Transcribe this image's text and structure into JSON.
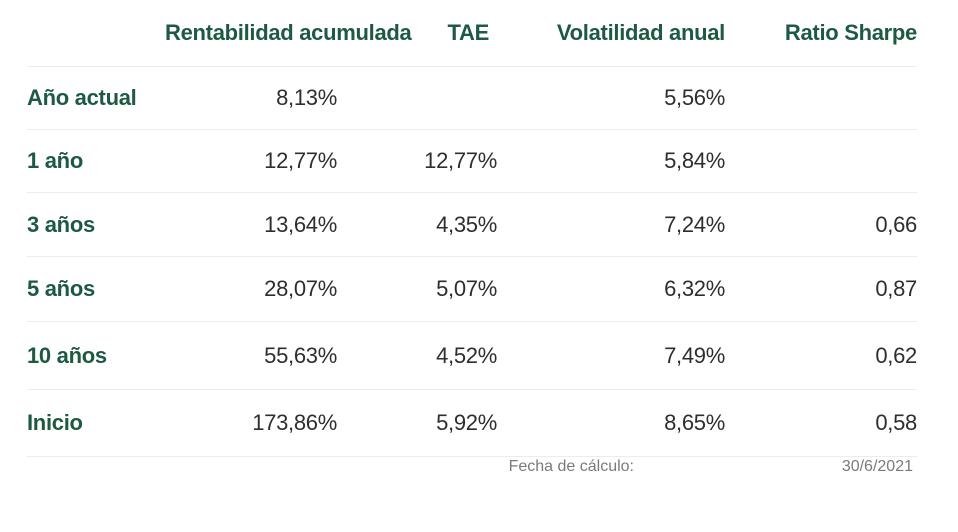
{
  "table": {
    "headers": [
      "",
      "Rentabilidad acumulada",
      "TAE",
      "Volatilidad anual",
      "Ratio Sharpe"
    ],
    "rows": [
      {
        "period": "Año actual",
        "rentabilidad": "8,13%",
        "tae": "",
        "volatilidad": "5,56%",
        "sharpe": ""
      },
      {
        "period": "1 año",
        "rentabilidad": "12,77%",
        "tae": "12,77%",
        "volatilidad": "5,84%",
        "sharpe": ""
      },
      {
        "period": "3 años",
        "rentabilidad": "13,64%",
        "tae": "4,35%",
        "volatilidad": "7,24%",
        "sharpe": "0,66"
      },
      {
        "period": "5 años",
        "rentabilidad": "28,07%",
        "tae": "5,07%",
        "volatilidad": "6,32%",
        "sharpe": "0,87"
      },
      {
        "period": "10 años",
        "rentabilidad": "55,63%",
        "tae": "4,52%",
        "volatilidad": "7,49%",
        "sharpe": "0,62"
      },
      {
        "period": "Inicio",
        "rentabilidad": "173,86%",
        "tae": "5,92%",
        "volatilidad": "8,65%",
        "sharpe": "0,58"
      }
    ]
  },
  "footer": {
    "label": "Fecha de cálculo:",
    "date": "30/6/2021"
  },
  "colors": {
    "header_green": "#1e5a42",
    "value_text": "#2e2e2e",
    "footer_text": "#7a7a7a",
    "divider": "#ececec"
  }
}
